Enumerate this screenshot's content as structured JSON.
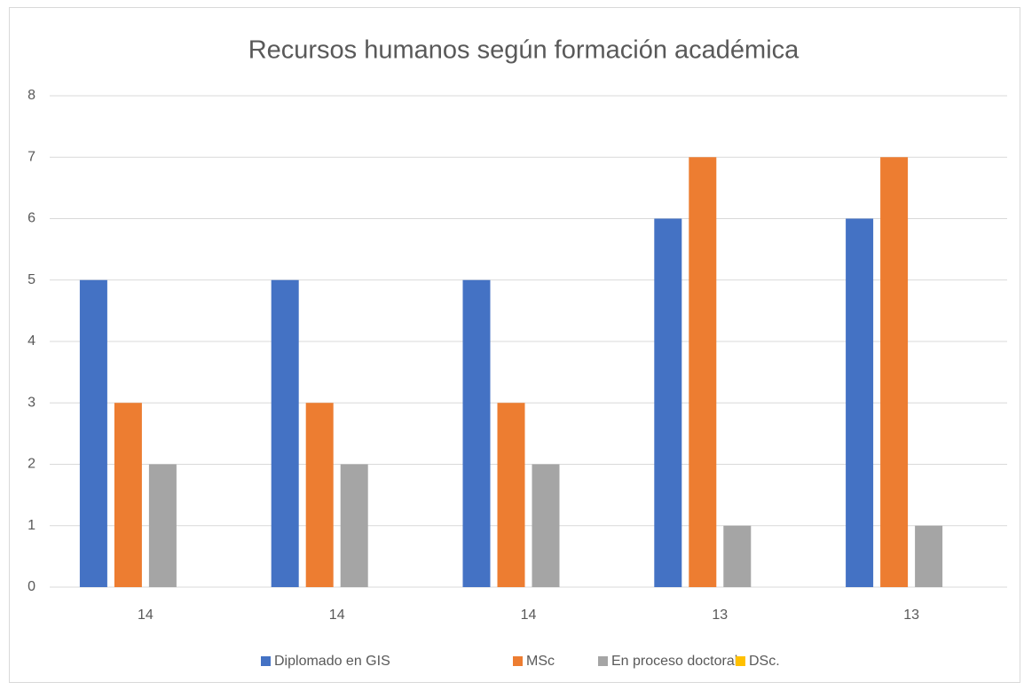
{
  "chart_data": {
    "type": "bar",
    "title": "Recursos humanos según formación académica",
    "categories": [
      "14",
      "14",
      "14",
      "13",
      "13"
    ],
    "series": [
      {
        "name": "Diplomado en GIS",
        "color": "#4472c4",
        "values": [
          5,
          5,
          5,
          6,
          6
        ]
      },
      {
        "name": "MSc",
        "color": "#ed7d31",
        "values": [
          3,
          3,
          3,
          7,
          7
        ]
      },
      {
        "name": "En proceso doctoral",
        "color": "#a5a5a5",
        "values": [
          2,
          2,
          2,
          1,
          1
        ]
      },
      {
        "name": "DSc.",
        "color": "#ffc000",
        "values": [
          0,
          0,
          0,
          0,
          0
        ]
      }
    ],
    "ylim": [
      0,
      8
    ],
    "yticks": [
      0,
      1,
      2,
      3,
      4,
      5,
      6,
      7,
      8
    ],
    "grid": true,
    "legend": "bottom"
  }
}
